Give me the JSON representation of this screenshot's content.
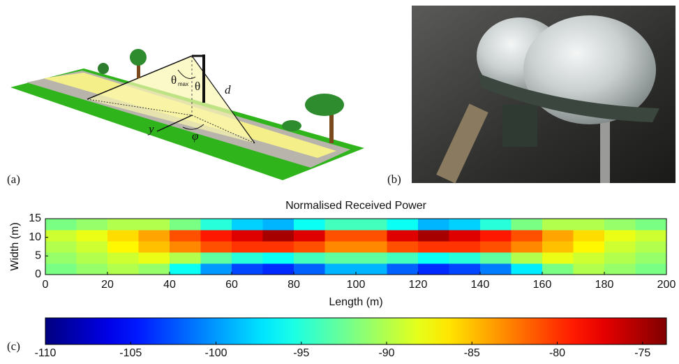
{
  "figure": {
    "panel_a": {
      "label": "(a)",
      "theta": "θ",
      "max": "max",
      "theta2": "θ",
      "d": "d",
      "y": "y",
      "phi": "φ"
    },
    "panel_b": {
      "label": "(b)"
    },
    "panel_c": {
      "label": "(c)"
    }
  },
  "chart_data": {
    "type": "heatmap",
    "title": "Normalised Received Power",
    "xlabel": "Length (m)",
    "ylabel": "Width (m)",
    "x_edges": [
      0,
      10,
      20,
      30,
      40,
      50,
      60,
      70,
      80,
      90,
      100,
      110,
      120,
      130,
      140,
      150,
      160,
      170,
      180,
      190,
      200
    ],
    "y_edges": [
      0,
      3,
      6,
      9,
      12,
      15
    ],
    "z": [
      [
        -92,
        -91,
        -90,
        -91,
        -96,
        -100,
        -103,
        -104,
        -102,
        -99,
        -99,
        -102,
        -104,
        -103,
        -101,
        -97,
        -92,
        -90,
        -91,
        -92
      ],
      [
        -91,
        -90,
        -89,
        -88,
        -90,
        -93,
        -95,
        -96,
        -94,
        -93,
        -93,
        -94,
        -96,
        -95,
        -93,
        -90,
        -88,
        -89,
        -90,
        -91
      ],
      [
        -90,
        -89,
        -87,
        -85,
        -83,
        -81,
        -80,
        -80,
        -81,
        -83,
        -83,
        -81,
        -80,
        -80,
        -81,
        -83,
        -85,
        -87,
        -89,
        -90
      ],
      [
        -89,
        -88,
        -86,
        -84,
        -81,
        -79,
        -77,
        -75,
        -77,
        -81,
        -81,
        -77,
        -75,
        -77,
        -79,
        -81,
        -84,
        -86,
        -88,
        -89
      ],
      [
        -92,
        -91,
        -90,
        -90,
        -92,
        -95,
        -98,
        -99,
        -96,
        -94,
        -94,
        -96,
        -99,
        -98,
        -95,
        -92,
        -90,
        -90,
        -91,
        -92
      ]
    ],
    "xlim": [
      0,
      200
    ],
    "xticks": [
      0,
      20,
      40,
      60,
      80,
      100,
      120,
      140,
      160,
      180,
      200
    ],
    "ylim": [
      0,
      15
    ],
    "yticks": [
      0,
      5,
      10,
      15
    ],
    "clim": [
      -110,
      -73.6
    ],
    "cticks": [
      -110,
      -105,
      -100,
      -95,
      -90,
      -85,
      -80,
      -75
    ],
    "colormap": "jet"
  }
}
